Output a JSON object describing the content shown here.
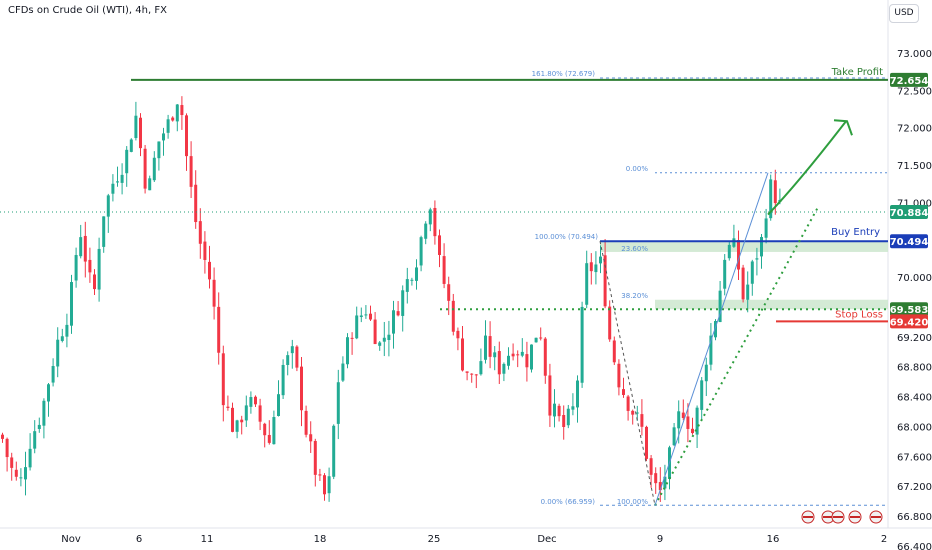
{
  "header": {
    "title": "CFDs on Crude Oil (WTI), 4h, FX",
    "currency": "USD"
  },
  "colors": {
    "up": "#22ab94",
    "down": "#f23645",
    "take_profit": "#2e7d32",
    "buy_entry": "#1a3db8",
    "stop_loss": "#e53935",
    "fib": "#5b8fd6",
    "fib_zone": "#cfe8d0",
    "trend": "#2e9e3e",
    "current": "#1f9d74"
  },
  "chart_data": {
    "type": "candlestick",
    "title": "CFDs on Crude Oil (WTI), 4h, FX",
    "ylim": [
      66.4,
      73.15
    ],
    "y_ticks": [
      "73.000",
      "72.500",
      "72.000",
      "71.500",
      "71.000",
      "70.000",
      "69.200",
      "68.800",
      "68.400",
      "68.000",
      "67.600",
      "67.200",
      "66.800",
      "66.400"
    ],
    "x_ticks": [
      "Nov",
      "6",
      "11",
      "18",
      "25",
      "Dec",
      "9",
      "16",
      "2"
    ],
    "price_path": [
      [
        0,
        67.9
      ],
      [
        8,
        67.5
      ],
      [
        18,
        67.2
      ],
      [
        28,
        67.8
      ],
      [
        40,
        68.2
      ],
      [
        55,
        69.1
      ],
      [
        68,
        69.6
      ],
      [
        78,
        70.7
      ],
      [
        92,
        69.7
      ],
      [
        100,
        70.8
      ],
      [
        112,
        71.3
      ],
      [
        124,
        71.6
      ],
      [
        134,
        72.2
      ],
      [
        146,
        71.1
      ],
      [
        156,
        71.8
      ],
      [
        168,
        72.1
      ],
      [
        178,
        72.5
      ],
      [
        186,
        71.5
      ],
      [
        196,
        70.6
      ],
      [
        210,
        69.9
      ],
      [
        222,
        68.4
      ],
      [
        234,
        67.9
      ],
      [
        246,
        68.4
      ],
      [
        258,
        68.1
      ],
      [
        268,
        67.8
      ],
      [
        280,
        68.8
      ],
      [
        292,
        69.0
      ],
      [
        304,
        68.0
      ],
      [
        316,
        67.3
      ],
      [
        326,
        67.0
      ],
      [
        336,
        68.6
      ],
      [
        350,
        69.3
      ],
      [
        364,
        69.6
      ],
      [
        378,
        69.1
      ],
      [
        390,
        69.4
      ],
      [
        404,
        69.9
      ],
      [
        416,
        70.3
      ],
      [
        428,
        71.1
      ],
      [
        438,
        70.2
      ],
      [
        450,
        69.5
      ],
      [
        460,
        68.9
      ],
      [
        472,
        68.6
      ],
      [
        484,
        69.1
      ],
      [
        498,
        68.8
      ],
      [
        512,
        69.1
      ],
      [
        526,
        68.9
      ],
      [
        538,
        69.4
      ],
      [
        548,
        68.3
      ],
      [
        562,
        68.0
      ],
      [
        574,
        68.3
      ],
      [
        584,
        70.1
      ],
      [
        600,
        70.2
      ],
      [
        608,
        69.2
      ],
      [
        618,
        68.6
      ],
      [
        628,
        68.3
      ],
      [
        640,
        68.0
      ],
      [
        650,
        67.3
      ],
      [
        658,
        67.1
      ],
      [
        668,
        67.6
      ],
      [
        680,
        68.3
      ],
      [
        692,
        67.9
      ],
      [
        704,
        68.9
      ],
      [
        716,
        69.6
      ],
      [
        724,
        70.4
      ],
      [
        734,
        70.4
      ],
      [
        742,
        69.7
      ],
      [
        752,
        70.2
      ],
      [
        760,
        70.5
      ],
      [
        768,
        71.25
      ],
      [
        776,
        71.05
      ],
      [
        782,
        70.85
      ]
    ],
    "current_price": "70.884",
    "levels": [
      {
        "name": "Take Profit",
        "value": "72.654",
        "price": 72.654
      },
      {
        "name": "Buy Entry",
        "value": "70.494",
        "price": 70.494
      },
      {
        "name": "Stop Loss",
        "value": "69.420",
        "price": 69.42
      },
      {
        "name": "",
        "value": "69.583",
        "price": 69.583
      }
    ],
    "fib_levels": [
      {
        "label": "161.80% (72.679)",
        "price": 72.679
      },
      {
        "label": "0.00%",
        "price": 71.41
      },
      {
        "label": "100.00% (70.494)",
        "price": 70.494
      },
      {
        "label": "23.60%",
        "price": 70.35
      },
      {
        "label": "38.20%",
        "price": 69.71
      },
      {
        "label": "0.00% (66.959)",
        "price": 66.959
      },
      {
        "label": "100.00%",
        "price": 66.959
      }
    ]
  }
}
